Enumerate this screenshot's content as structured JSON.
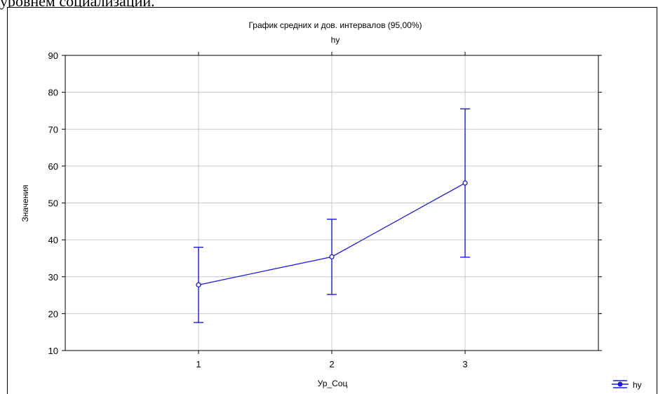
{
  "page": {
    "caption": "уровнем социализации."
  },
  "chart_data": {
    "type": "line",
    "title": "График средних и дов. интервалов (95,00%)",
    "subtitle": "hy",
    "xlabel": "Ур_Соц",
    "ylabel": "Значения",
    "categories": [
      "1",
      "2",
      "3"
    ],
    "ylim": [
      10,
      90
    ],
    "yticks": [
      10,
      20,
      30,
      40,
      50,
      60,
      70,
      80,
      90
    ],
    "grid": true,
    "legend_position": "bottom-right",
    "series": [
      {
        "name": "hy",
        "color": "#1a1ae6",
        "means": [
          27.8,
          35.4,
          55.4
        ],
        "ci_low": [
          17.6,
          25.2,
          35.3
        ],
        "ci_high": [
          38.0,
          45.6,
          75.5
        ]
      }
    ]
  }
}
